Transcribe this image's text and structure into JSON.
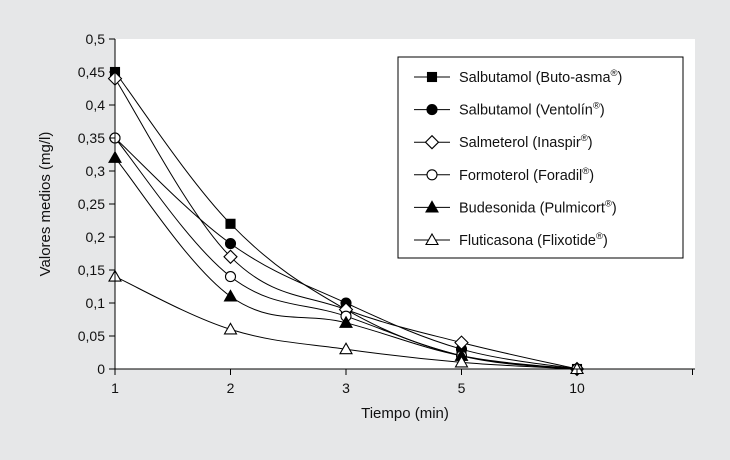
{
  "chart_data": {
    "type": "line",
    "title": "",
    "xlabel": "Tiempo (min)",
    "ylabel": "Valores medios (mg/l)",
    "categories": [
      "1",
      "2",
      "3",
      "5",
      "10"
    ],
    "ylim": [
      0,
      0.5
    ],
    "yticks": [
      0,
      0.05,
      0.1,
      0.15,
      0.2,
      0.25,
      0.3,
      0.35,
      0.4,
      0.45,
      0.5
    ],
    "ytick_labels": [
      "0",
      "0,05",
      "0,1",
      "0,15",
      "0,2",
      "0,25",
      "0,3",
      "0,35",
      "0,4",
      "0,45",
      "0,5"
    ],
    "grid": false,
    "legend_position": "top-right",
    "series": [
      {
        "name": "Salbutamol (Buto-asma",
        "sup": "®",
        "suffix": ")",
        "marker": "square-filled",
        "values": [
          0.45,
          0.22,
          0.09,
          0.02,
          0
        ]
      },
      {
        "name": "Salbutamol (Ventolín",
        "sup": "®",
        "suffix": ")",
        "marker": "circle-filled",
        "values": [
          0.35,
          0.19,
          0.1,
          0.03,
          0
        ]
      },
      {
        "name": "Salmeterol (Inaspir",
        "sup": "®",
        "suffix": ")",
        "marker": "diamond-open",
        "values": [
          0.44,
          0.17,
          0.09,
          0.04,
          0
        ]
      },
      {
        "name": "Formoterol (Foradil",
        "sup": "®",
        "suffix": ")",
        "marker": "circle-open",
        "values": [
          0.35,
          0.14,
          0.08,
          0.02,
          0
        ]
      },
      {
        "name": "Budesonida (Pulmicort",
        "sup": "®",
        "suffix": ")",
        "marker": "triangle-filled",
        "values": [
          0.32,
          0.11,
          0.07,
          0.02,
          0
        ]
      },
      {
        "name": "Fluticasona (Flixotide",
        "sup": "®",
        "suffix": ")",
        "marker": "triangle-open",
        "values": [
          0.14,
          0.06,
          0.03,
          0.01,
          0
        ]
      }
    ]
  }
}
